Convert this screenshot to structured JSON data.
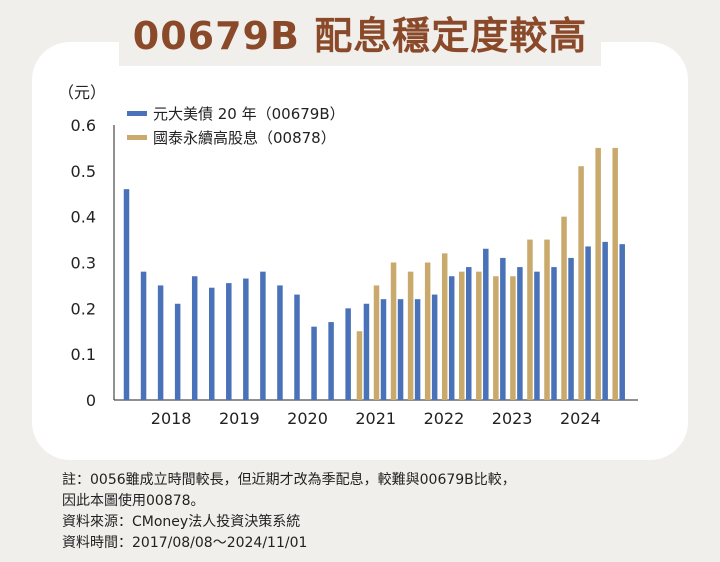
{
  "title": "00679B 配息穩定度較高",
  "chart_data": {
    "type": "bar",
    "unit_label": "（元）",
    "ylim": [
      0,
      0.6
    ],
    "yticks": [
      "0",
      "0.1",
      "0.2",
      "0.3",
      "0.4",
      "0.5",
      "0.6"
    ],
    "year_labels": [
      "2018",
      "2019",
      "2020",
      "2021",
      "2022",
      "2023",
      "2024"
    ],
    "year_label_slots": [
      2.5,
      6.5,
      10.5,
      14.5,
      18.5,
      22.5,
      26.5
    ],
    "slot_count": 30,
    "colors": {
      "00679B": "#4a72b8",
      "00878": "#c9a96c"
    },
    "series": [
      {
        "name": "元大美債 20 年（00679B）",
        "color": "#4a72b8",
        "values": [
          0.46,
          0.28,
          0.25,
          0.21,
          0.27,
          0.245,
          0.255,
          0.265,
          0.28,
          0.25,
          0.23,
          0.16,
          0.17,
          0.2,
          0.21,
          0.22,
          0.22,
          0.22,
          0.23,
          0.27,
          0.29,
          0.33,
          0.31,
          0.29,
          0.28,
          0.29,
          0.31,
          0.335,
          0.345,
          0.34
        ]
      },
      {
        "name": "國泰永續高股息（00878）",
        "color": "#c9a96c",
        "values": [
          null,
          null,
          null,
          null,
          null,
          null,
          null,
          null,
          null,
          null,
          null,
          null,
          null,
          null,
          0.15,
          0.25,
          0.3,
          0.28,
          0.3,
          0.32,
          0.28,
          0.28,
          0.27,
          0.27,
          0.35,
          0.35,
          0.4,
          0.51,
          0.55,
          0.55
        ]
      }
    ]
  },
  "notes": [
    "註：0056雖成立時間較長，但近期才改為季配息，較難與00679B比較，",
    "因此本圖使用00878。",
    "資料來源：CMoney法人投資決策系統",
    "資料時間：2017/08/08～2024/11/01"
  ]
}
